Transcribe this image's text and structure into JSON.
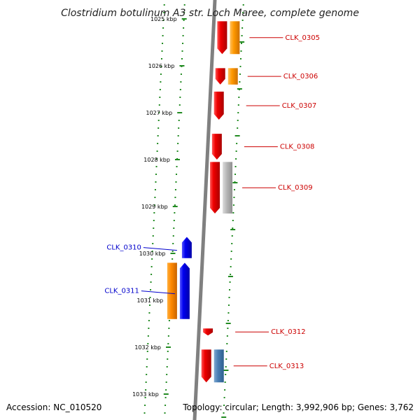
{
  "title": "Clostridium botulinum A3 str. Loch Maree, complete genome",
  "footer": {
    "accession": "Accession: NC_010520",
    "summary": "Topology: circular; Length: 3,992,906 bp; Genes: 3,762"
  },
  "colors": {
    "forward_label": "#cc0000",
    "reverse_label": "#0000cc",
    "tick": "#228b22",
    "backbone": "#808080"
  },
  "chart_data": {
    "type": "genome-map",
    "kbp_ticks": [
      "1025 kbp",
      "1026 kbp",
      "1027 kbp",
      "1028 kbp",
      "1029 kbp",
      "1030 kbp",
      "1031 kbp",
      "1032 kbp",
      "1033 kbp"
    ],
    "genes": [
      {
        "id": "CLK_0305",
        "strand": "+",
        "start_kbp": 1025.05,
        "end_kbp": 1025.75,
        "color": "#ee0000",
        "cog_color": "#ff9900"
      },
      {
        "id": "CLK_0306",
        "strand": "+",
        "start_kbp": 1026.05,
        "end_kbp": 1026.4,
        "color": "#ee0000",
        "cog_color": "#ff9900"
      },
      {
        "id": "CLK_0307",
        "strand": "+",
        "start_kbp": 1026.55,
        "end_kbp": 1027.15,
        "color": "#ee0000",
        "cog_color": ""
      },
      {
        "id": "CLK_0308",
        "strand": "+",
        "start_kbp": 1027.45,
        "end_kbp": 1028.0,
        "color": "#ee0000",
        "cog_color": ""
      },
      {
        "id": "CLK_0309",
        "strand": "+",
        "start_kbp": 1028.05,
        "end_kbp": 1029.15,
        "color": "#ee0000",
        "cog_color": "#b0b0b0"
      },
      {
        "id": "CLK_0310",
        "strand": "-",
        "start_kbp": 1029.65,
        "end_kbp": 1030.1,
        "color": "#0000ee",
        "cog_color": ""
      },
      {
        "id": "CLK_0311",
        "strand": "-",
        "start_kbp": 1030.2,
        "end_kbp": 1031.4,
        "color": "#0000ee",
        "cog_color": "#ff8800"
      },
      {
        "id": "CLK_0312",
        "strand": "+",
        "start_kbp": 1031.6,
        "end_kbp": 1031.75,
        "color": "#ee0000",
        "cog_color": ""
      },
      {
        "id": "CLK_0313",
        "strand": "+",
        "start_kbp": 1032.05,
        "end_kbp": 1032.75,
        "color": "#ee0000",
        "cog_color": "#4a7fb5"
      }
    ]
  }
}
